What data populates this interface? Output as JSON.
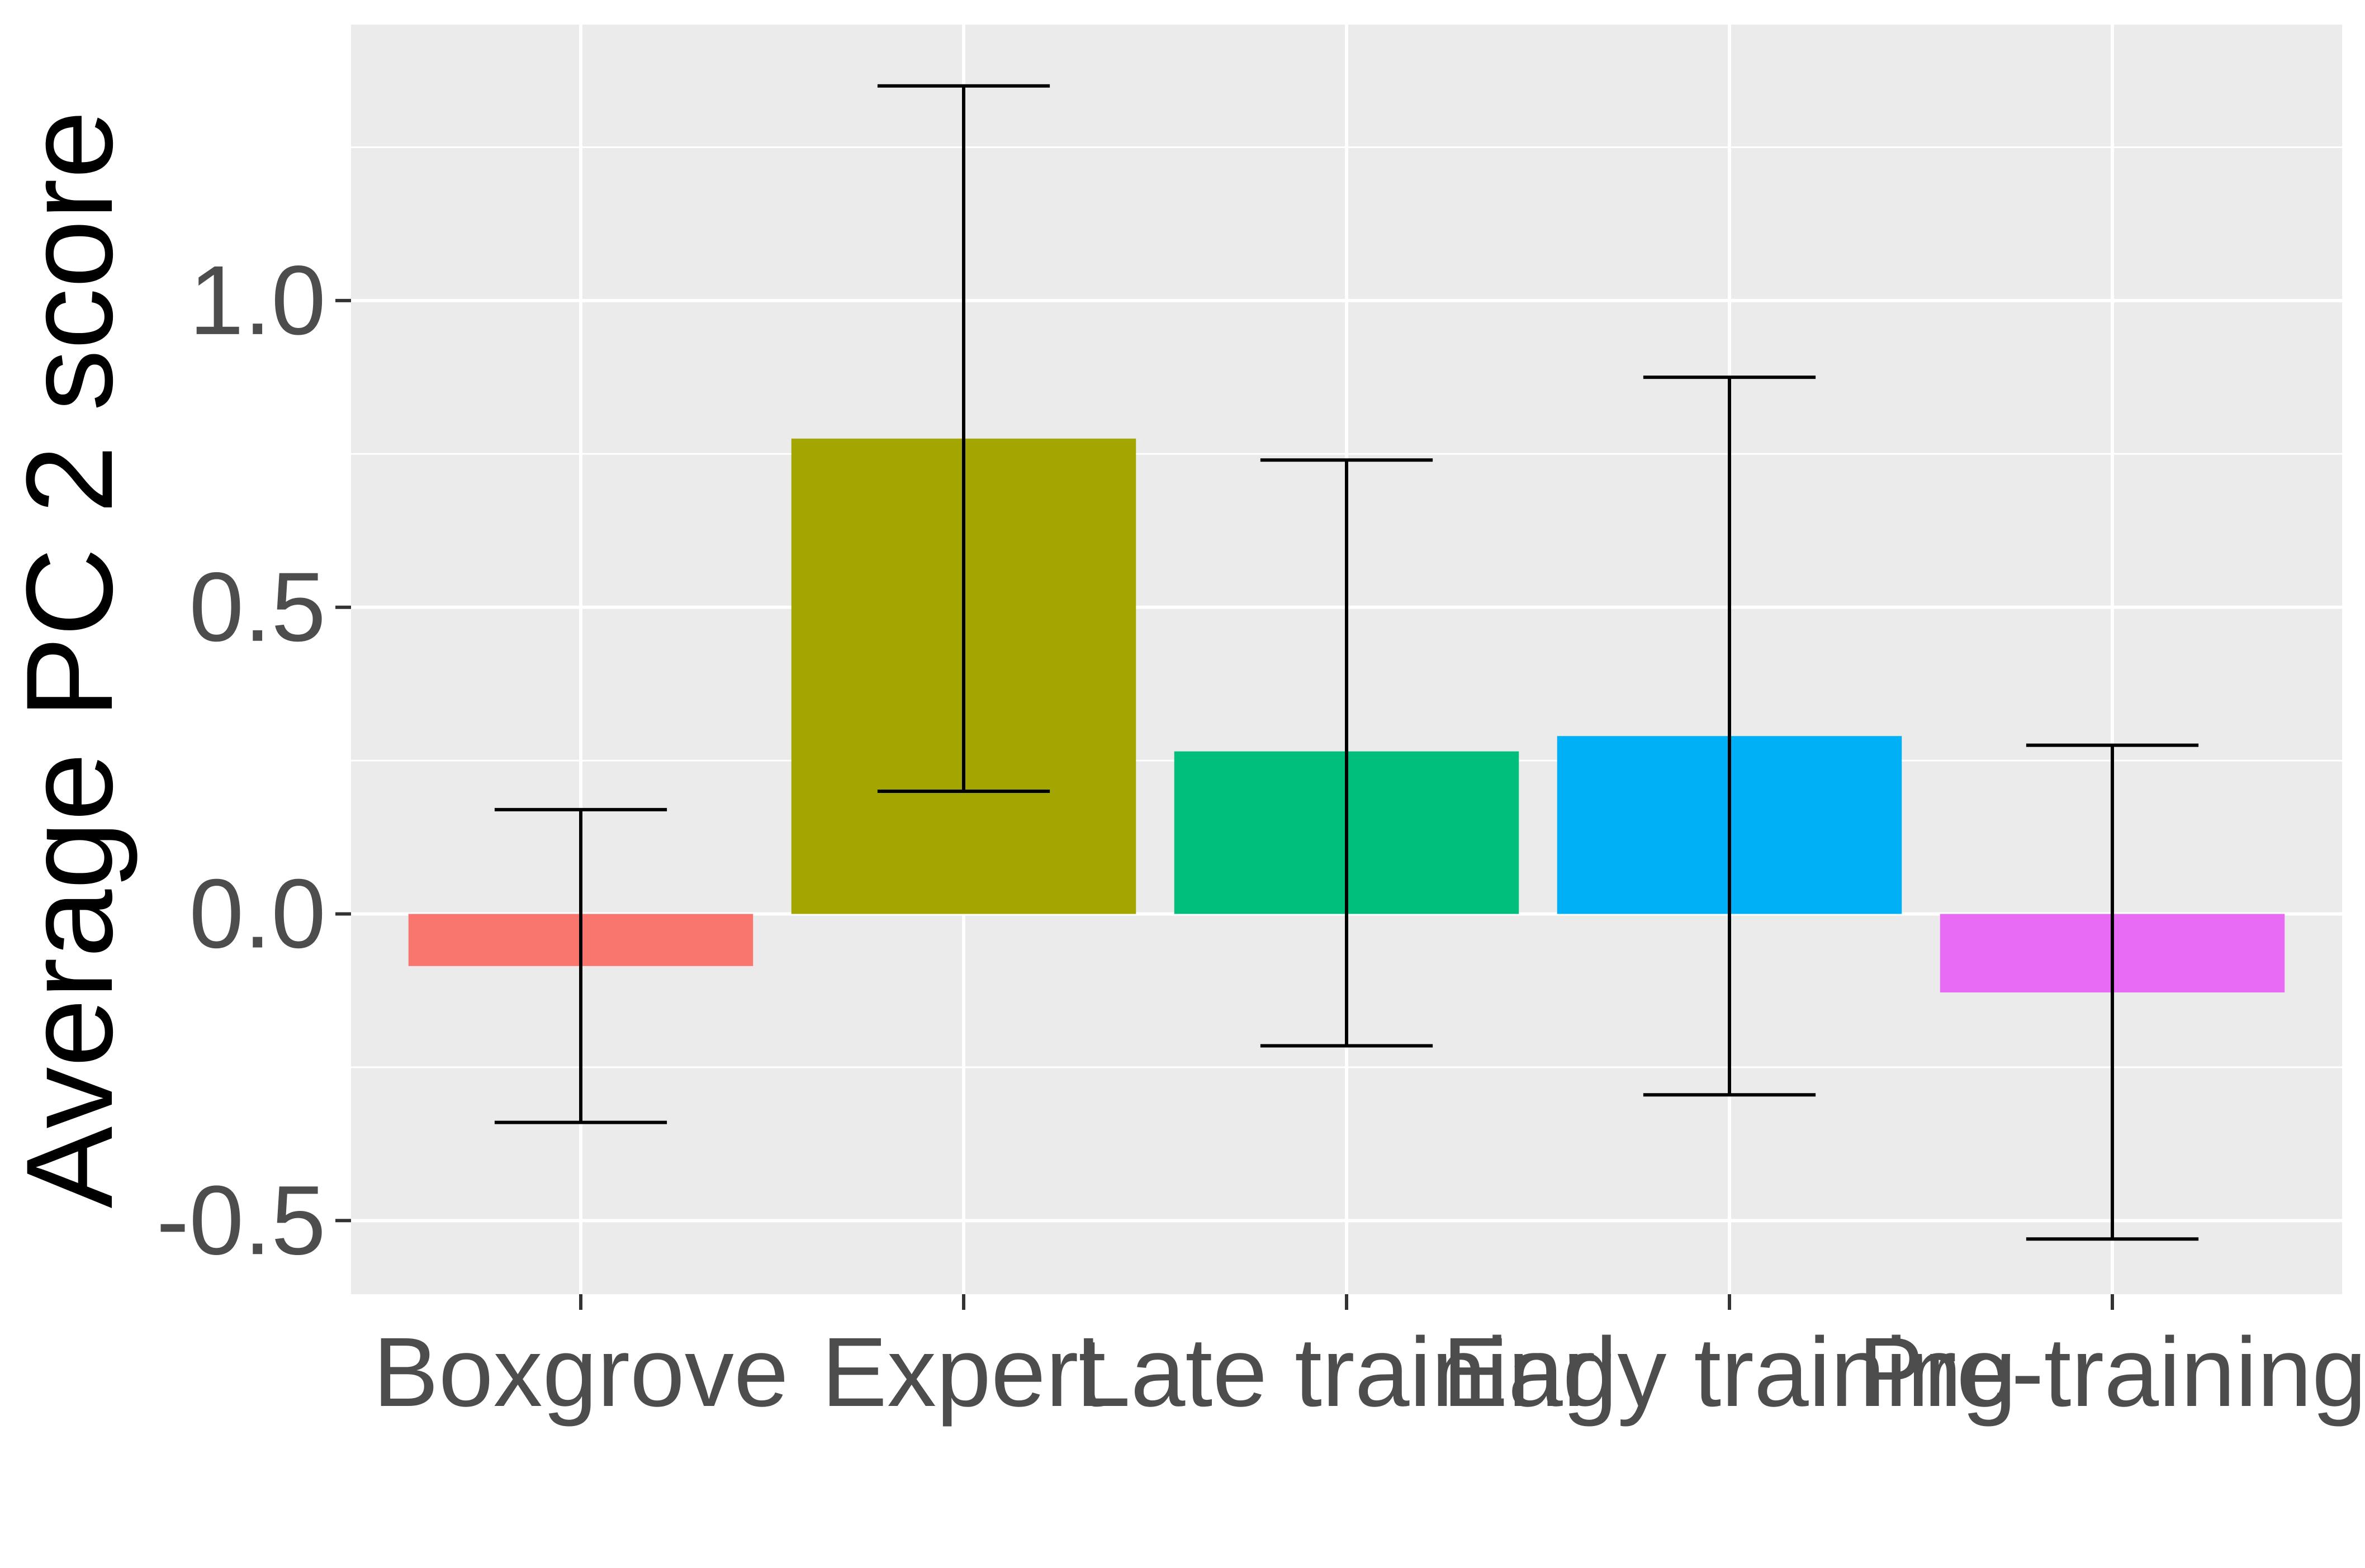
{
  "chart_data": {
    "type": "bar",
    "categories": [
      "Boxgrove",
      "Expert",
      "Late training",
      "Early training",
      "Pre-training"
    ],
    "values": [
      -0.085,
      0.775,
      0.265,
      0.29,
      -0.128
    ],
    "error_bars": [
      {
        "low": -0.34,
        "high": 0.17
      },
      {
        "low": 0.2,
        "high": 1.35
      },
      {
        "low": -0.215,
        "high": 0.74
      },
      {
        "low": -0.295,
        "high": 0.875
      },
      {
        "low": -0.53,
        "high": 0.275
      }
    ],
    "colors": [
      "#F8766D",
      "#A3A500",
      "#00BF7D",
      "#00B0F6",
      "#E76BF3"
    ],
    "xlabel": "",
    "ylabel": "Average PC 2 score",
    "ylim": [
      -0.62,
      1.45
    ],
    "yticks": [
      -0.5,
      0.0,
      0.5,
      1.0
    ],
    "ytick_labels": [
      "-0.5",
      "0.0",
      "0.5",
      "1.0"
    ],
    "grid": true,
    "legend": "none",
    "panel_background": "#EBEBEB"
  }
}
